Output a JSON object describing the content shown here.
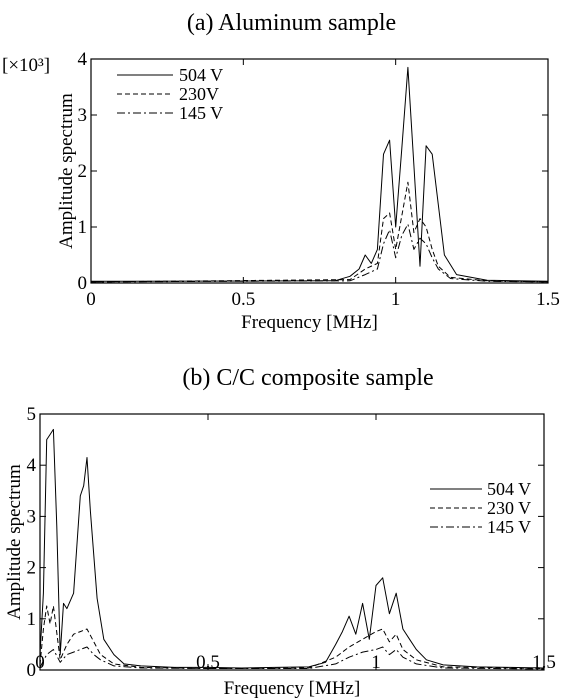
{
  "chart_data": [
    {
      "type": "line",
      "title": "(a)  Aluminum sample",
      "xlabel": "Frequency [MHz]",
      "ylabel": "Amplitude spectrum",
      "y_multiplier": "[×10³]",
      "xlim": [
        0,
        1.5
      ],
      "ylim": [
        0,
        4
      ],
      "xticks": [
        "0",
        "0.5",
        "1",
        "1.5"
      ],
      "yticks": [
        "0",
        "1",
        "2",
        "3",
        "4"
      ],
      "grid": false,
      "legend": "top-left",
      "series": [
        {
          "name": "504 V",
          "dash": "solid",
          "x": [
            0,
            0.8,
            0.85,
            0.88,
            0.9,
            0.92,
            0.94,
            0.96,
            0.98,
            1.0,
            1.02,
            1.04,
            1.06,
            1.08,
            1.1,
            1.12,
            1.14,
            1.16,
            1.2,
            1.3,
            1.5
          ],
          "values": [
            0.03,
            0.04,
            0.12,
            0.25,
            0.5,
            0.35,
            0.6,
            2.3,
            2.55,
            1.0,
            2.4,
            3.85,
            2.1,
            0.3,
            2.45,
            2.3,
            1.4,
            0.5,
            0.15,
            0.05,
            0.03
          ]
        },
        {
          "name": "230V",
          "dash": "dashed",
          "x": [
            0,
            0.85,
            0.9,
            0.94,
            0.96,
            0.98,
            1.0,
            1.02,
            1.04,
            1.06,
            1.08,
            1.1,
            1.12,
            1.14,
            1.18,
            1.3,
            1.5
          ],
          "values": [
            0.02,
            0.06,
            0.25,
            0.35,
            1.15,
            1.25,
            0.6,
            1.2,
            1.8,
            0.9,
            1.15,
            1.0,
            0.6,
            0.3,
            0.1,
            0.04,
            0.02
          ]
        },
        {
          "name": "145 V",
          "dash": "dashdot",
          "x": [
            0,
            0.85,
            0.9,
            0.94,
            0.96,
            0.98,
            1.0,
            1.02,
            1.04,
            1.06,
            1.08,
            1.1,
            1.12,
            1.14,
            1.18,
            1.3,
            1.5
          ],
          "values": [
            0.02,
            0.04,
            0.15,
            0.25,
            0.7,
            0.95,
            0.45,
            0.85,
            1.05,
            0.6,
            0.8,
            0.7,
            0.45,
            0.25,
            0.08,
            0.03,
            0.02
          ]
        }
      ]
    },
    {
      "type": "line",
      "title": "(b)  C/C composite sample",
      "xlabel": "Frequency [MHz]",
      "ylabel": "Amplitude spectrum",
      "xlim": [
        0,
        1.5
      ],
      "ylim": [
        0,
        5
      ],
      "xticks": [
        "0",
        "0.5",
        "1",
        "1.5"
      ],
      "yticks": [
        "0",
        "1",
        "2",
        "3",
        "4",
        "5"
      ],
      "grid": false,
      "legend": "top-right",
      "series": [
        {
          "name": "504 V",
          "dash": "solid",
          "x": [
            0,
            0.01,
            0.02,
            0.03,
            0.04,
            0.05,
            0.06,
            0.07,
            0.08,
            0.1,
            0.12,
            0.13,
            0.14,
            0.15,
            0.17,
            0.19,
            0.22,
            0.25,
            0.3,
            0.4,
            0.5,
            0.6,
            0.7,
            0.8,
            0.85,
            0.88,
            0.9,
            0.92,
            0.94,
            0.96,
            0.98,
            1.0,
            1.02,
            1.04,
            1.06,
            1.08,
            1.1,
            1.12,
            1.15,
            1.2,
            1.3,
            1.4,
            1.5
          ],
          "values": [
            0.3,
            1.5,
            4.5,
            4.6,
            4.7,
            2.8,
            0.3,
            1.3,
            1.2,
            1.5,
            3.4,
            3.6,
            4.15,
            3.1,
            1.4,
            0.6,
            0.3,
            0.12,
            0.08,
            0.05,
            0.05,
            0.04,
            0.05,
            0.06,
            0.15,
            0.5,
            0.75,
            1.05,
            0.7,
            1.3,
            0.6,
            1.65,
            1.8,
            1.1,
            1.5,
            0.8,
            0.6,
            0.4,
            0.2,
            0.1,
            0.06,
            0.05,
            0.04
          ]
        },
        {
          "name": "230 V",
          "dash": "dashed",
          "x": [
            0,
            0.01,
            0.02,
            0.03,
            0.04,
            0.06,
            0.08,
            0.1,
            0.12,
            0.14,
            0.16,
            0.18,
            0.22,
            0.3,
            0.5,
            0.8,
            0.88,
            0.92,
            0.96,
            1.0,
            1.02,
            1.04,
            1.06,
            1.08,
            1.12,
            1.2,
            1.5
          ],
          "values": [
            0.1,
            0.8,
            1.25,
            0.9,
            1.25,
            0.2,
            0.5,
            0.7,
            0.75,
            0.8,
            0.55,
            0.3,
            0.12,
            0.05,
            0.03,
            0.04,
            0.25,
            0.45,
            0.6,
            0.75,
            0.8,
            0.55,
            0.7,
            0.4,
            0.2,
            0.06,
            0.03
          ]
        },
        {
          "name": "145 V",
          "dash": "dashdot",
          "x": [
            0,
            0.02,
            0.04,
            0.06,
            0.08,
            0.1,
            0.12,
            0.14,
            0.16,
            0.18,
            0.22,
            0.3,
            0.5,
            0.8,
            0.88,
            0.92,
            0.96,
            1.0,
            1.02,
            1.04,
            1.06,
            1.08,
            1.12,
            1.2,
            1.5
          ],
          "values": [
            0.05,
            0.3,
            0.4,
            0.15,
            0.3,
            0.35,
            0.4,
            0.45,
            0.3,
            0.2,
            0.08,
            0.04,
            0.03,
            0.03,
            0.12,
            0.25,
            0.35,
            0.4,
            0.45,
            0.3,
            0.4,
            0.25,
            0.12,
            0.04,
            0.02
          ]
        }
      ]
    }
  ]
}
